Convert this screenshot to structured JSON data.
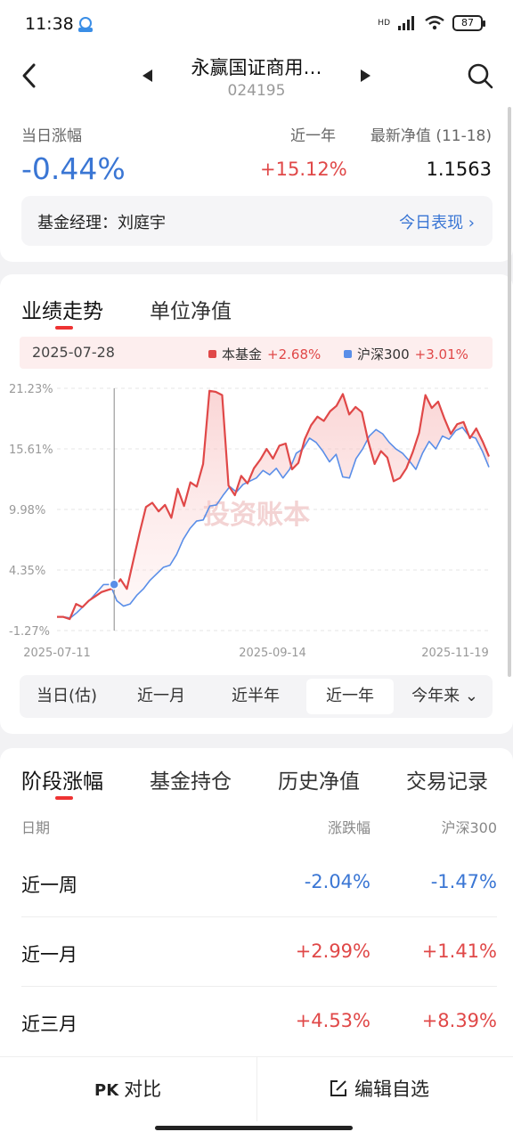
{
  "status_bar": {
    "time": "11:38",
    "battery": "87",
    "hd": "HD"
  },
  "header": {
    "title": "永赢国证商用…",
    "code": "024195"
  },
  "summary": {
    "daily_label": "当日涨幅",
    "daily_value": "-0.44%",
    "year_label": "近一年",
    "year_value": "+15.12%",
    "nav_label": "最新净值 (11-18)",
    "nav_value": "1.1563",
    "manager_label": "基金经理：刘庭宇",
    "today_link": "今日表现 ›"
  },
  "chart_tabs": [
    "业绩走势",
    "单位净值"
  ],
  "legend": {
    "date": "2025-07-28",
    "fund_name": "本基金",
    "fund_pct": "+2.68%",
    "index_name": "沪深300",
    "index_pct": "+3.01%"
  },
  "watermark": "投资账本",
  "chart_data": {
    "type": "line",
    "y_ticks": [
      "21.23%",
      "15.61%",
      "9.98%",
      "4.35%",
      "-1.27%"
    ],
    "ylim": [
      -1.27,
      21.23
    ],
    "x_ticks": [
      "2025-07-11",
      "2025-09-14",
      "2025-11-19"
    ],
    "series": [
      {
        "name": "本基金",
        "color": "#e04848",
        "values": [
          0,
          0,
          -0.2,
          1.2,
          0.9,
          1.5,
          1.9,
          2.3,
          2.5,
          2.68,
          3.5,
          2.6,
          5.2,
          7.8,
          10.2,
          10.6,
          9.8,
          10.4,
          9.2,
          11.9,
          10.3,
          12.5,
          12.1,
          14.2,
          21.0,
          20.9,
          20.6,
          12.2,
          11.3,
          13.1,
          12.4,
          13.8,
          14.6,
          15.6,
          14.7,
          15.9,
          16.1,
          13.7,
          14.3,
          16.5,
          17.8,
          18.6,
          18.2,
          19.1,
          19.6,
          20.7,
          18.8,
          19.5,
          19.0,
          16.3,
          14.2,
          15.4,
          14.8,
          12.6,
          12.9,
          13.8,
          15.3,
          17.1,
          20.6,
          19.4,
          20.0,
          18.4,
          17.0,
          17.9,
          18.1,
          16.6,
          17.5,
          16.3,
          14.9
        ]
      },
      {
        "name": "沪深300",
        "color": "#5a8ee8",
        "values": [
          0,
          0,
          -0.1,
          0.4,
          1.0,
          1.6,
          2.3,
          3.0,
          3.01,
          1.5,
          1.0,
          1.2,
          2.0,
          2.6,
          3.4,
          4.0,
          4.6,
          4.8,
          5.8,
          7.2,
          8.2,
          8.9,
          9.0,
          10.3,
          10.4,
          11.3,
          12.1,
          11.6,
          12.3,
          12.6,
          12.9,
          13.6,
          13.2,
          13.8,
          12.9,
          13.7,
          15.2,
          15.6,
          16.6,
          16.2,
          15.4,
          14.4,
          15.1,
          13.0,
          12.9,
          14.7,
          15.6,
          16.8,
          17.4,
          17.0,
          16.2,
          15.6,
          15.2,
          14.5,
          13.7,
          15.2,
          16.3,
          15.6,
          16.8,
          16.5,
          17.3,
          17.6,
          16.8,
          16.6,
          15.4,
          13.9
        ]
      }
    ]
  },
  "ranges": [
    "当日(估)",
    "近一月",
    "近半年",
    "近一年",
    "今年来"
  ],
  "section_tabs": [
    "阶段涨幅",
    "基金持仓",
    "历史净值",
    "交易记录"
  ],
  "table": {
    "headers": [
      "日期",
      "涨跌幅",
      "沪深300"
    ],
    "rows": [
      {
        "period": "近一周",
        "fund": "-2.04%",
        "index": "-1.47%"
      },
      {
        "period": "近一月",
        "fund": "+2.99%",
        "index": "+1.41%"
      },
      {
        "period": "近三月",
        "fund": "+4.53%",
        "index": "+8.39%"
      }
    ]
  },
  "bottom": {
    "compare": "对比",
    "edit": "编辑自选"
  }
}
